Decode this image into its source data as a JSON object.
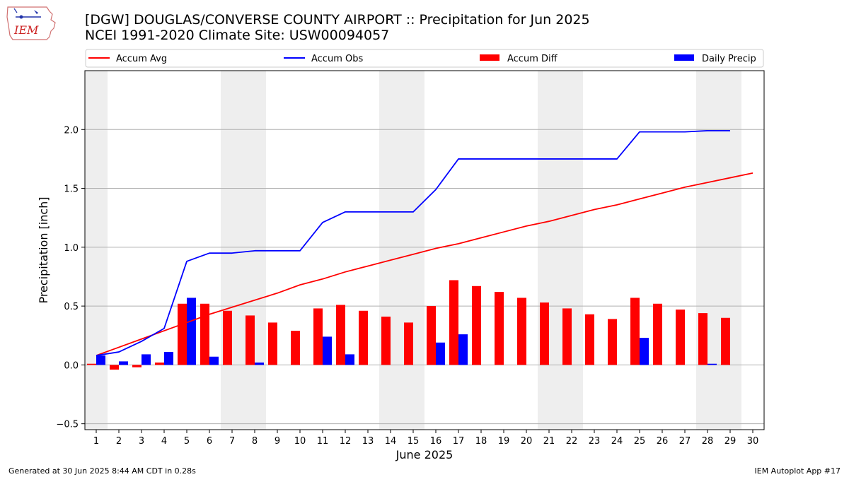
{
  "header": {
    "title_line1": "[DGW] DOUGLAS/CONVERSE COUNTY AIRPORT :: Precipitation for Jun 2025",
    "title_line2": "NCEI 1991-2020 Climate Site: USW00094057"
  },
  "logo": {
    "text": "IEM",
    "icon": "iowa-state-outline-icon"
  },
  "footer": {
    "generated": "Generated at 30 Jun 2025 8:44 AM CDT in 0.28s",
    "app": "IEM Autoplot App #17"
  },
  "colors": {
    "accum_avg": "#ff0000",
    "accum_obs": "#0000ff",
    "accum_diff": "#ff0000",
    "daily_precip": "#0000ff",
    "weekend_band": "#eeeeee",
    "grid": "#b0b0b0"
  },
  "chart_data": {
    "type": "bar",
    "xlabel": "June 2025",
    "ylabel": "Precipitation [inch]",
    "ylim": [
      -0.55,
      2.5
    ],
    "yticks": [
      "−0.5",
      "0.0",
      "0.5",
      "1.0",
      "1.5",
      "2.0"
    ],
    "ytick_values": [
      -0.5,
      0.0,
      0.5,
      1.0,
      1.5,
      2.0
    ],
    "grid": "horizontal",
    "legend_placement": "top",
    "days": [
      "1",
      "2",
      "3",
      "4",
      "5",
      "6",
      "7",
      "8",
      "9",
      "10",
      "11",
      "12",
      "13",
      "14",
      "15",
      "16",
      "17",
      "18",
      "19",
      "20",
      "21",
      "22",
      "23",
      "24",
      "25",
      "26",
      "27",
      "28",
      "29",
      "30"
    ],
    "weekend_days": [
      1,
      7,
      8,
      14,
      15,
      21,
      22,
      28,
      29
    ],
    "legend": [
      "Accum Avg",
      "Accum Obs",
      "Accum Diff",
      "Daily Precip"
    ],
    "series": [
      {
        "name": "Accum Avg",
        "kind": "line",
        "values": [
          0.08,
          0.15,
          0.22,
          0.29,
          0.36,
          0.43,
          0.49,
          0.55,
          0.61,
          0.68,
          0.73,
          0.79,
          0.84,
          0.89,
          0.94,
          0.99,
          1.03,
          1.08,
          1.13,
          1.18,
          1.22,
          1.27,
          1.32,
          1.36,
          1.41,
          1.46,
          1.51,
          1.55,
          1.59,
          1.63
        ]
      },
      {
        "name": "Accum Obs",
        "kind": "line",
        "values": [
          0.08,
          0.11,
          0.2,
          0.31,
          0.88,
          0.95,
          0.95,
          0.97,
          0.97,
          0.97,
          1.21,
          1.3,
          1.3,
          1.3,
          1.3,
          1.49,
          1.75,
          1.75,
          1.75,
          1.75,
          1.75,
          1.75,
          1.75,
          1.75,
          1.98,
          1.98,
          1.98,
          1.99,
          1.99,
          null
        ]
      },
      {
        "name": "Accum Diff",
        "kind": "bar",
        "values": [
          0.01,
          -0.04,
          -0.02,
          0.02,
          0.52,
          0.52,
          0.46,
          0.42,
          0.36,
          0.29,
          0.48,
          0.51,
          0.46,
          0.41,
          0.36,
          0.5,
          0.72,
          0.67,
          0.62,
          0.57,
          0.53,
          0.48,
          0.43,
          0.39,
          0.57,
          0.52,
          0.47,
          0.44,
          0.4,
          null
        ]
      },
      {
        "name": "Daily Precip",
        "kind": "bar",
        "values": [
          0.08,
          0.03,
          0.09,
          0.11,
          0.57,
          0.07,
          0.0,
          0.02,
          0.0,
          0.0,
          0.24,
          0.09,
          0.0,
          0.0,
          0.0,
          0.19,
          0.26,
          0.0,
          0.0,
          0.0,
          0.0,
          0.0,
          0.0,
          0.0,
          0.23,
          0.0,
          0.0,
          0.01,
          0.0,
          null
        ]
      }
    ]
  }
}
